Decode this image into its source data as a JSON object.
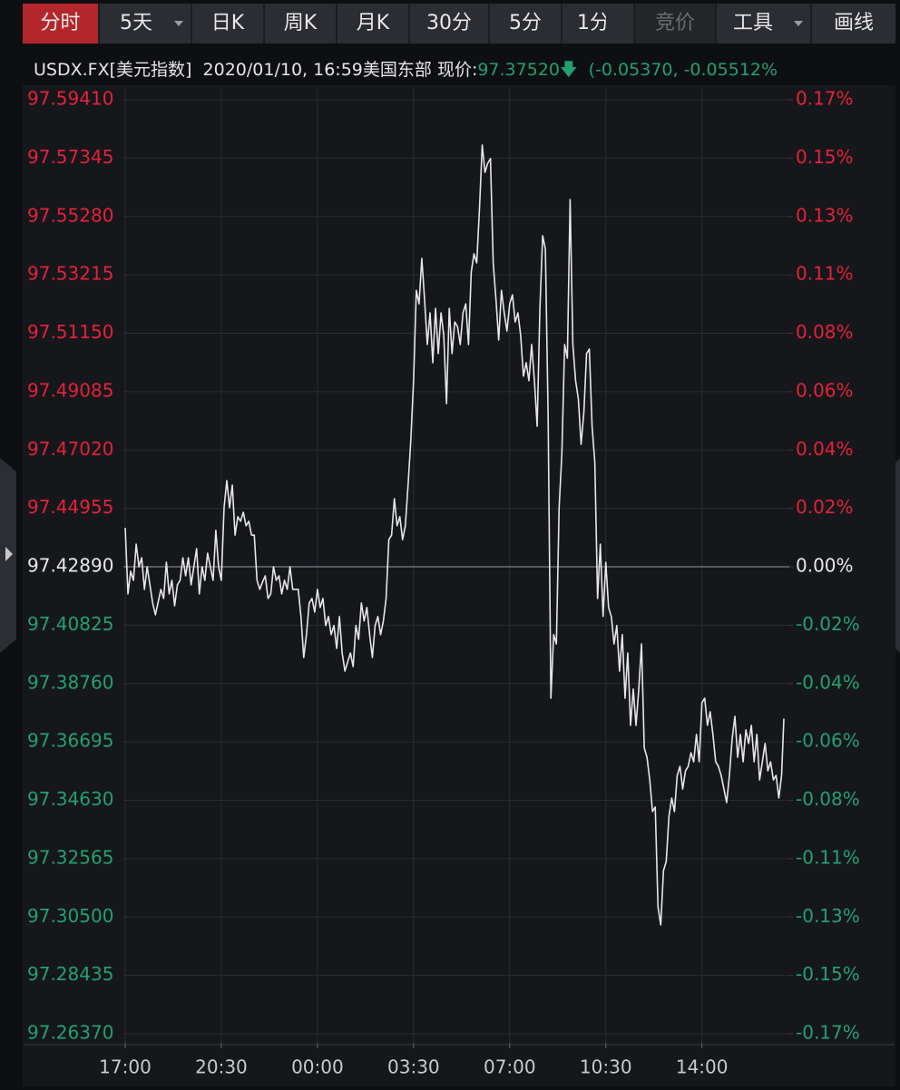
{
  "toolbar": {
    "tabs": [
      "分时",
      "5天",
      "日K",
      "周K",
      "月K",
      "30分",
      "5分",
      "1分",
      "竞价",
      "工具",
      "画线"
    ]
  },
  "quote": {
    "symbol": "USDX.FX[美元指数]",
    "datetime": "2020/01/10, 16:59美国东部",
    "price_label": "现价:",
    "price": "97.37520",
    "change": "(-0.05370, -0.05512%"
  },
  "chart_data": {
    "type": "line",
    "color": "#e6e6e6",
    "grid": true,
    "up_color": "#e3223a",
    "down_color": "#24a070",
    "flat_color": "#e8e8e8",
    "x": [
      "17:00",
      "17:06",
      "17:12",
      "17:18",
      "17:24",
      "17:30",
      "17:36",
      "17:42",
      "17:48",
      "17:54",
      "18:00",
      "18:06",
      "18:12",
      "18:18",
      "18:24",
      "18:30",
      "18:36",
      "18:42",
      "18:48",
      "18:54",
      "19:00",
      "19:06",
      "19:12",
      "19:18",
      "19:24",
      "19:30",
      "19:36",
      "19:42",
      "19:48",
      "19:54",
      "20:00",
      "20:06",
      "20:12",
      "20:18",
      "20:24",
      "20:30",
      "20:36",
      "20:42",
      "20:48",
      "20:54",
      "21:00",
      "21:06",
      "21:12",
      "21:18",
      "21:24",
      "21:30",
      "21:36",
      "21:42",
      "21:48",
      "21:54",
      "22:00",
      "22:06",
      "22:12",
      "22:18",
      "22:24",
      "22:30",
      "22:36",
      "22:42",
      "22:48",
      "22:54",
      "23:00",
      "23:06",
      "23:12",
      "23:18",
      "23:24",
      "23:30",
      "23:36",
      "23:42",
      "23:48",
      "23:54",
      "00:00",
      "00:06",
      "00:12",
      "00:18",
      "00:24",
      "00:30",
      "00:36",
      "00:42",
      "00:48",
      "00:54",
      "01:00",
      "01:06",
      "01:12",
      "01:18",
      "01:24",
      "01:30",
      "01:36",
      "01:42",
      "01:48",
      "01:54",
      "02:00",
      "02:06",
      "02:12",
      "02:18",
      "02:24",
      "02:30",
      "02:36",
      "02:42",
      "02:48",
      "02:54",
      "03:00",
      "03:06",
      "03:12",
      "03:18",
      "03:24",
      "03:30",
      "03:36",
      "03:42",
      "03:48",
      "03:54",
      "04:00",
      "04:06",
      "04:12",
      "04:18",
      "04:24",
      "04:30",
      "04:36",
      "04:42",
      "04:48",
      "04:54",
      "05:00",
      "05:06",
      "05:12",
      "05:18",
      "05:24",
      "05:30",
      "05:36",
      "05:42",
      "05:48",
      "05:54",
      "06:00",
      "06:06",
      "06:12",
      "06:18",
      "06:24",
      "06:30",
      "06:36",
      "06:42",
      "06:48",
      "06:54",
      "07:00",
      "07:06",
      "07:12",
      "07:18",
      "07:24",
      "07:30",
      "07:36",
      "07:42",
      "07:48",
      "07:54",
      "08:00",
      "08:06",
      "08:12",
      "08:18",
      "08:24",
      "08:30",
      "08:36",
      "08:42",
      "08:48",
      "08:54",
      "09:00",
      "09:06",
      "09:12",
      "09:18",
      "09:24",
      "09:30",
      "09:36",
      "09:42",
      "09:48",
      "09:54",
      "10:00",
      "10:06",
      "10:12",
      "10:18",
      "10:24",
      "10:30",
      "10:36",
      "10:42",
      "10:48",
      "10:54",
      "11:00",
      "11:06",
      "11:12",
      "11:18",
      "11:24",
      "11:30",
      "11:36",
      "11:42",
      "11:48",
      "11:54",
      "12:00",
      "12:06",
      "12:12",
      "12:18",
      "12:24",
      "12:30",
      "12:36",
      "12:42",
      "12:48",
      "12:54",
      "13:00",
      "13:06",
      "13:12",
      "13:18",
      "13:24",
      "13:30",
      "13:36",
      "13:42",
      "13:48",
      "13:54",
      "14:00",
      "14:06",
      "14:12",
      "14:18",
      "14:24",
      "14:30",
      "14:36",
      "14:42",
      "14:48",
      "14:54",
      "15:00",
      "15:06",
      "15:12",
      "15:18",
      "15:24",
      "15:30",
      "15:36",
      "15:42",
      "15:48",
      "15:54",
      "16:00",
      "16:06",
      "16:12",
      "16:18",
      "16:24",
      "16:30",
      "16:36",
      "16:42",
      "16:48",
      "16:54",
      "16:59"
    ],
    "values": [
      97.4427,
      97.4193,
      97.4273,
      97.4241,
      97.4369,
      97.4289,
      97.4321,
      97.4209,
      97.4289,
      97.4225,
      97.4161,
      97.4119,
      97.4164,
      97.4209,
      97.4177,
      97.4305,
      97.4193,
      97.4241,
      97.4151,
      97.4225,
      97.4241,
      97.4321,
      97.4257,
      97.4321,
      97.4225,
      97.4289,
      97.4353,
      97.4193,
      97.4289,
      97.4241,
      97.4337,
      97.4289,
      97.4241,
      97.4418,
      97.4289,
      97.4241,
      97.4498,
      97.4594,
      97.4498,
      97.4578,
      97.4401,
      97.4466,
      97.445,
      97.4482,
      97.4434,
      97.445,
      97.4401,
      97.4401,
      97.4241,
      97.4209,
      97.4235,
      97.4257,
      97.4177,
      97.4193,
      97.4289,
      97.4241,
      97.4257,
      97.4193,
      97.4241,
      97.4209,
      97.4289,
      97.4209,
      97.4209,
      97.4209,
      97.4113,
      97.3968,
      97.4049,
      97.4161,
      97.4177,
      97.4129,
      97.4209,
      97.4145,
      97.4177,
      97.4081,
      97.4113,
      97.4049,
      97.4081,
      97.4,
      97.4113,
      97.3984,
      97.392,
      97.3952,
      97.3984,
      97.3936,
      97.4081,
      97.4032,
      97.4161,
      97.4097,
      97.4145,
      97.4049,
      97.3968,
      97.4081,
      97.4113,
      97.4049,
      97.4097,
      97.4177,
      97.4385,
      97.4401,
      97.453,
      97.4434,
      97.4466,
      97.4385,
      97.4434,
      97.4578,
      97.4738,
      97.4947,
      97.5267,
      97.5219,
      97.538,
      97.5235,
      97.5075,
      97.5187,
      97.5011,
      97.5203,
      97.5043,
      97.5187,
      97.5107,
      97.4866,
      97.5203,
      97.5043,
      97.5155,
      97.5139,
      97.5075,
      97.5187,
      97.5219,
      97.5075,
      97.5331,
      97.5396,
      97.5364,
      97.5556,
      97.5781,
      97.5684,
      97.5716,
      97.5733,
      97.5364,
      97.5235,
      97.5091,
      97.5267,
      97.5187,
      97.5123,
      97.5219,
      97.5251,
      97.5155,
      97.5187,
      97.5107,
      97.4963,
      97.5011,
      97.4947,
      97.5075,
      97.4947,
      97.4786,
      97.5203,
      97.546,
      97.5412,
      97.4818,
      97.3824,
      97.4049,
      97.4016,
      97.4498,
      97.469,
      97.5075,
      97.5027,
      97.5588,
      97.5075,
      97.4947,
      97.4883,
      97.4722,
      97.4834,
      97.5043,
      97.5059,
      97.4786,
      97.4658,
      97.4177,
      97.4369,
      97.4113,
      97.4305,
      97.4145,
      97.4113,
      97.4016,
      97.4081,
      97.392,
      97.4049,
      97.3824,
      97.3984,
      97.3728,
      97.3856,
      97.3728,
      97.3856,
      97.4016,
      97.3648,
      97.3615,
      97.3535,
      97.3423,
      97.3439,
      97.3086,
      97.3022,
      97.3214,
      97.3247,
      97.3407,
      97.3471,
      97.3423,
      97.3551,
      97.3583,
      97.3503,
      97.3567,
      97.3583,
      97.3631,
      97.3599,
      97.3696,
      97.3599,
      97.3808,
      97.3824,
      97.3728,
      97.3776,
      97.3696,
      97.3599,
      97.3583,
      97.3551,
      97.3503,
      97.3455,
      97.3551,
      97.368,
      97.376,
      97.3615,
      97.3696,
      97.3599,
      97.3712,
      97.3664,
      97.3728,
      97.3599,
      97.3696,
      97.3535,
      97.3599,
      97.3664,
      97.3567,
      97.3599,
      97.3535,
      97.3551,
      97.3471,
      97.3551,
      97.3752
    ],
    "xlim": [
      "17:00",
      "16:59"
    ],
    "xticks": [
      "17:00",
      "20:30",
      "00:00",
      "03:30",
      "07:00",
      "10:30",
      "14:00"
    ],
    "ylim": [
      97.2637,
      97.5941
    ],
    "yticks": [
      {
        "value": 97.5941,
        "label": "97.59410"
      },
      97.57345,
      {
        "value": 97.5528,
        "label": "97.55280"
      },
      97.53215,
      {
        "value": 97.5115,
        "label": "97.51150"
      },
      97.49085,
      {
        "value": 97.4702,
        "label": "97.47020"
      },
      97.44955,
      {
        "value": 97.4289,
        "label": "97.42890"
      },
      97.40825,
      {
        "value": 97.3876,
        "label": "97.38760"
      },
      97.36695,
      {
        "value": 97.3463,
        "label": "97.34630"
      },
      97.32565,
      {
        "value": 97.305,
        "label": "97.30500"
      },
      97.28435,
      {
        "value": 97.2637,
        "label": "97.26370"
      }
    ],
    "y2lim": [
      -0.1696,
      0.1696
    ],
    "y2ticks": [
      {
        "value": 0.1696,
        "label": "0.17%"
      },
      {
        "value": 0.1484,
        "label": "0.15%"
      },
      {
        "value": 0.1272,
        "label": "0.13%"
      },
      {
        "value": 0.106,
        "label": "0.11%"
      },
      {
        "value": 0.0848,
        "label": "0.08%"
      },
      {
        "value": 0.0636,
        "label": "0.06%"
      },
      {
        "value": 0.0424,
        "label": "0.04%"
      },
      {
        "value": 0.0212,
        "label": "0.02%"
      },
      {
        "value": 0,
        "label": "0.00%"
      },
      {
        "value": -0.0212,
        "label": "-0.02%"
      },
      {
        "value": -0.0424,
        "label": "-0.04%"
      },
      {
        "value": -0.0636,
        "label": "-0.06%"
      },
      {
        "value": -0.0848,
        "label": "-0.08%"
      },
      {
        "value": -0.106,
        "label": "-0.11%"
      },
      {
        "value": -0.1272,
        "label": "-0.13%"
      },
      {
        "value": -0.1484,
        "label": "-0.15%"
      },
      {
        "value": -0.1696,
        "label": "-0.17%"
      }
    ]
  }
}
